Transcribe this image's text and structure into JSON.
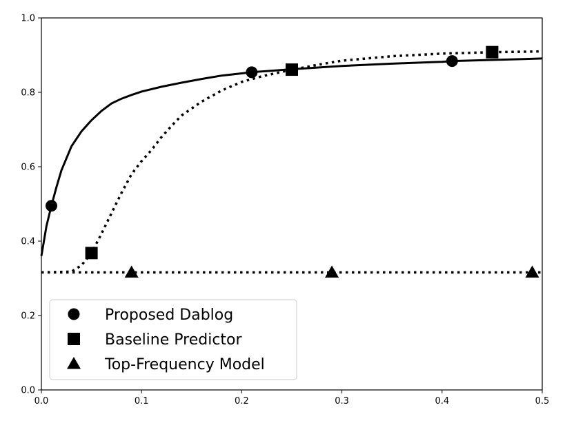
{
  "chart_data": {
    "type": "line",
    "title": "",
    "xlabel": "",
    "ylabel": "",
    "xlim": [
      0.0,
      0.5
    ],
    "ylim": [
      0.0,
      1.0
    ],
    "grid": false,
    "legend_placement": "lower-left",
    "x_ticks": [
      "0.0",
      "0.1",
      "0.2",
      "0.3",
      "0.4",
      "0.5"
    ],
    "y_ticks": [
      "0.0",
      "0.2",
      "0.4",
      "0.6",
      "0.8",
      "1.0"
    ],
    "series": [
      {
        "name": "Proposed Dablog",
        "marker": "circle",
        "line_style": "solid",
        "color": "#000000",
        "points": [
          [
            0.0,
            0.36
          ],
          [
            0.005,
            0.44
          ],
          [
            0.01,
            0.495
          ],
          [
            0.015,
            0.545
          ],
          [
            0.02,
            0.59
          ],
          [
            0.03,
            0.655
          ],
          [
            0.04,
            0.695
          ],
          [
            0.05,
            0.725
          ],
          [
            0.06,
            0.75
          ],
          [
            0.07,
            0.77
          ],
          [
            0.08,
            0.783
          ],
          [
            0.09,
            0.793
          ],
          [
            0.1,
            0.802
          ],
          [
            0.12,
            0.815
          ],
          [
            0.14,
            0.826
          ],
          [
            0.16,
            0.836
          ],
          [
            0.18,
            0.845
          ],
          [
            0.2,
            0.851
          ],
          [
            0.21,
            0.854
          ],
          [
            0.25,
            0.862
          ],
          [
            0.3,
            0.871
          ],
          [
            0.35,
            0.877
          ],
          [
            0.4,
            0.882
          ],
          [
            0.41,
            0.884
          ],
          [
            0.45,
            0.887
          ],
          [
            0.5,
            0.891
          ]
        ],
        "marker_x": [
          0.01,
          0.21,
          0.41
        ]
      },
      {
        "name": "Baseline Predictor",
        "marker": "square",
        "line_style": "dotted",
        "color": "#000000",
        "points": [
          [
            0.0,
            0.316
          ],
          [
            0.03,
            0.318
          ],
          [
            0.04,
            0.335
          ],
          [
            0.05,
            0.368
          ],
          [
            0.06,
            0.42
          ],
          [
            0.07,
            0.475
          ],
          [
            0.08,
            0.53
          ],
          [
            0.09,
            0.58
          ],
          [
            0.1,
            0.615
          ],
          [
            0.11,
            0.645
          ],
          [
            0.12,
            0.68
          ],
          [
            0.13,
            0.71
          ],
          [
            0.14,
            0.738
          ],
          [
            0.16,
            0.775
          ],
          [
            0.18,
            0.805
          ],
          [
            0.2,
            0.828
          ],
          [
            0.22,
            0.843
          ],
          [
            0.25,
            0.861
          ],
          [
            0.28,
            0.876
          ],
          [
            0.3,
            0.885
          ],
          [
            0.35,
            0.897
          ],
          [
            0.4,
            0.904
          ],
          [
            0.45,
            0.908
          ],
          [
            0.5,
            0.91
          ]
        ],
        "marker_x": [
          0.05,
          0.25,
          0.45
        ]
      },
      {
        "name": "Top-Frequency Model",
        "marker": "triangle",
        "line_style": "dotted",
        "color": "#000000",
        "points": [
          [
            0.0,
            0.316
          ],
          [
            0.5,
            0.316
          ]
        ],
        "marker_x": [
          0.09,
          0.29,
          0.49
        ]
      }
    ]
  }
}
